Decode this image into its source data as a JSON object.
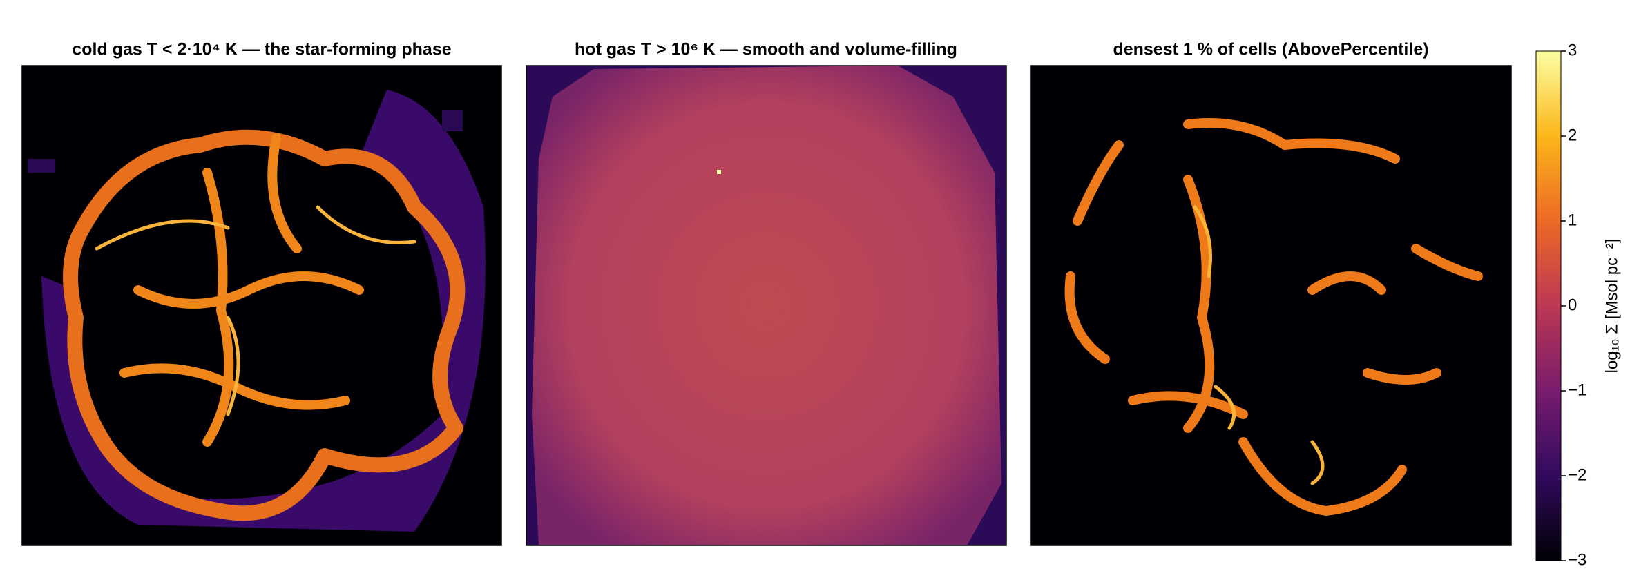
{
  "chart_data": {
    "type": "heatmap",
    "panels": [
      {
        "title": "cold gas  T < 2·10⁴ K — the star-forming phase"
      },
      {
        "title": "hot gas  T > 10⁶ K — smooth and volume-filling"
      },
      {
        "title": "densest 1 % of cells (AbovePercentile)"
      }
    ],
    "colorbar": {
      "label": "log₁₀ Σ  [Msol pc⁻²]",
      "colormap": "inferno",
      "lim": [
        -3,
        3
      ],
      "ticks": [
        {
          "value": -3,
          "label": "−3"
        },
        {
          "value": -2,
          "label": "−2"
        },
        {
          "value": -1,
          "label": "−1"
        },
        0,
        1,
        2,
        3
      ]
    }
  }
}
